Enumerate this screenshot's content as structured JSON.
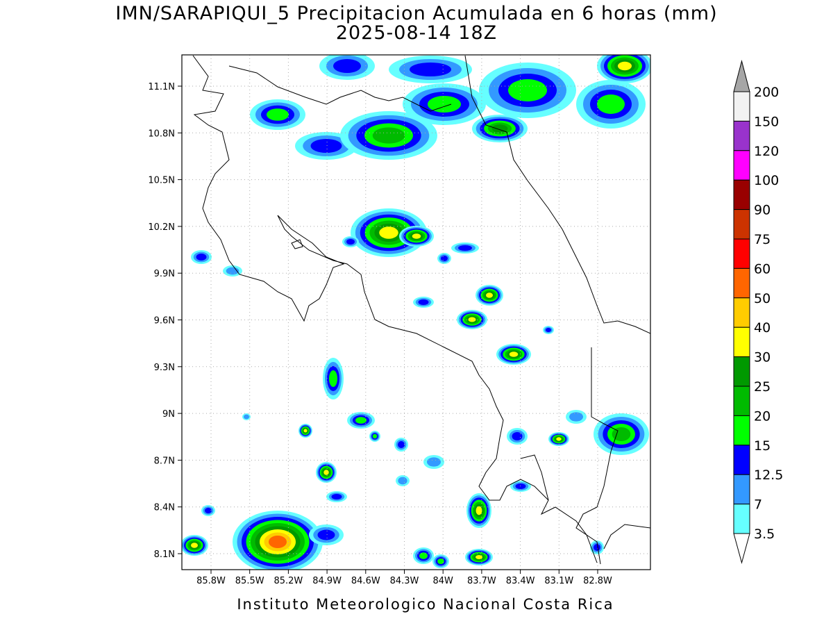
{
  "title": "IMN/SARAPIQUI_5 Precipitacion Acumulada en 6 horas (mm)",
  "subtitle": "2025-08-14 18Z",
  "lat_labels": [
    "11.1N",
    "10.8N",
    "10.5N",
    "10.2N",
    "9.9N",
    "9.6N",
    "9.3N",
    "9N",
    "8.7N",
    "8.4N",
    "8.1N"
  ],
  "lon_labels": [
    "85.8W",
    "85.5W",
    "85.2W",
    "84.9W",
    "84.6W",
    "84.3W",
    "84W",
    "83.7W",
    "83.4W",
    "83.1W",
    "82.8W"
  ],
  "colorbar": {
    "labels": [
      "200",
      "150",
      "120",
      "100",
      "90",
      "75",
      "60",
      "50",
      "40",
      "30",
      "25",
      "20",
      "15",
      "12.5",
      "7",
      "3.5"
    ],
    "colors": [
      "#f2f2f2",
      "#9933cc",
      "#ff00ff",
      "#990000",
      "#cc3300",
      "#ff0000",
      "#ff6600",
      "#ffcc00",
      "#ffff00",
      "#009900",
      "#00bb00",
      "#00ff00",
      "#0000ff",
      "#3399ff",
      "#66ffff"
    ],
    "over_color": "#a6a6a6",
    "under_color": "#ffffff"
  },
  "footer": "Instituto Meteorologico Nacional Costa Rica"
}
